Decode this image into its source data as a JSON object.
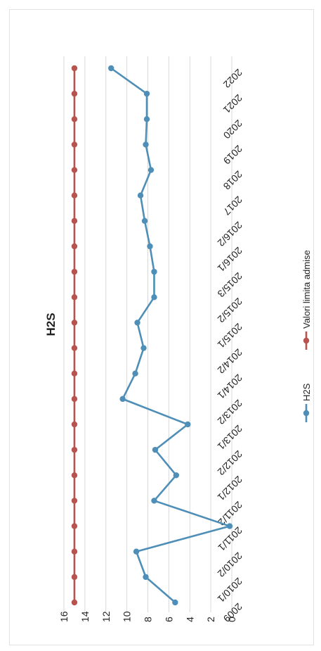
{
  "chart_data": {
    "type": "line",
    "title": "H2S",
    "rotation": "rotated 90 degrees counter-clockwise",
    "categories": [
      "2009",
      "2010/1",
      "2010/2",
      "2011/1",
      "2011/2",
      "2012/1",
      "2012/2",
      "2013/1",
      "2013/2",
      "2014/1",
      "2014/2",
      "2015/1",
      "2015/2",
      "2015/3",
      "2016/1",
      "2016/2",
      "2017",
      "2018",
      "2019",
      "2020",
      "2021",
      "2022"
    ],
    "ylim": [
      0,
      16
    ],
    "yticks": [
      "0",
      "2",
      "4",
      "6",
      "8",
      "10",
      "12",
      "14",
      "16"
    ],
    "grid": true,
    "legend_position": "bottom",
    "series": [
      {
        "name": "H2S",
        "color": "#4f8fb7",
        "values": [
          5.4,
          8.2,
          9.1,
          0.2,
          7.4,
          5.3,
          7.3,
          4.2,
          10.4,
          9.2,
          8.4,
          9.0,
          7.4,
          7.4,
          7.8,
          8.3,
          8.7,
          7.7,
          8.2,
          8.1,
          8.1,
          11.5
        ]
      },
      {
        "name": "Valori limita admise",
        "color": "#b85450",
        "values": [
          15,
          15,
          15,
          15,
          15,
          15,
          15,
          15,
          15,
          15,
          15,
          15,
          15,
          15,
          15,
          15,
          15,
          15,
          15,
          15,
          15,
          15
        ]
      }
    ]
  }
}
